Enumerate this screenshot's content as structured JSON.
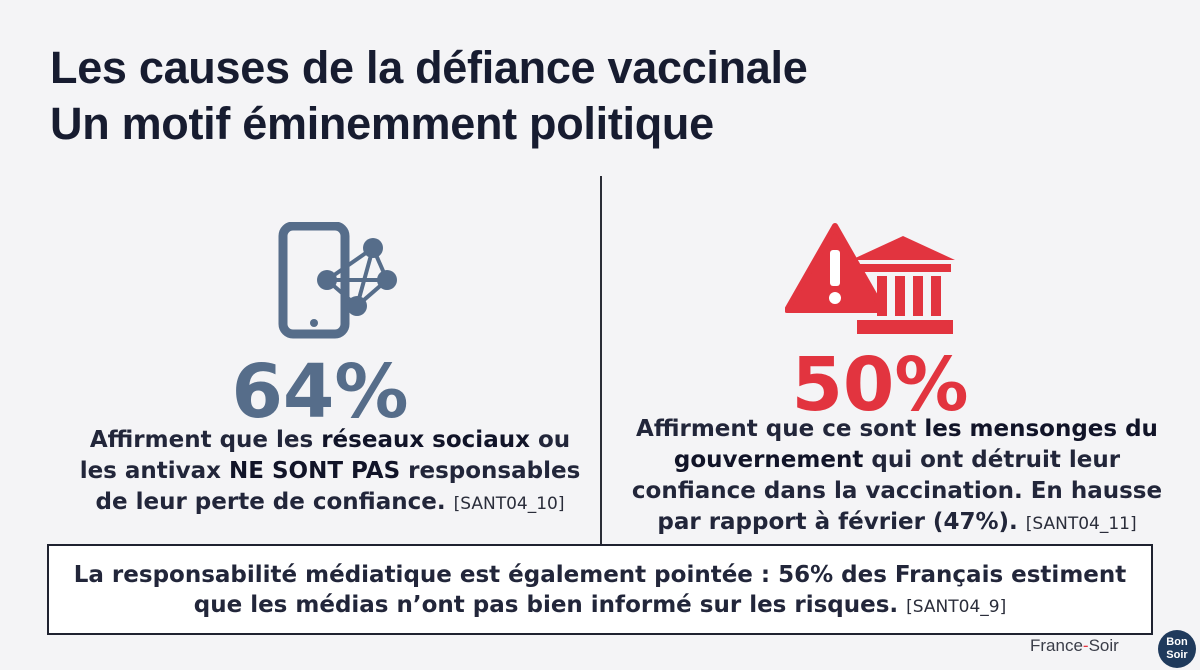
{
  "header": {
    "title_line1": "Les causes de la défiance vaccinale",
    "title_line2": "Un motif éminemment politique"
  },
  "left": {
    "icon": "smartphone-network-icon",
    "percent": "64%",
    "text_1": "Affirment que les ",
    "text_bold_1": "réseaux sociaux",
    "text_2": " ou les antivax ",
    "text_bold_2": "NE SONT PAS",
    "text_3": " responsables de leur perte de confiance. ",
    "ref": "[SANT04_10]"
  },
  "right": {
    "icon": "warning-government-icon",
    "percent": "50%",
    "text_1": "Affirment que ce sont ",
    "text_bold_1": "les mensonges du gouvernement",
    "text_2": " qui ont détruit leur confiance dans la vaccination. En hausse par rapport à février (47%). ",
    "ref": "[SANT04_11]"
  },
  "callout": {
    "text": "La responsabilité médiatique est également pointée : 56% des Français estiment que les médias n’ont pas bien informé sur les risques. ",
    "ref": "[SANT04_9]"
  },
  "footer": {
    "brand_part1": "France",
    "brand_dash": "-",
    "brand_part2": "Soir",
    "badge_line1": "Bon",
    "badge_line2": "Soir"
  },
  "colors": {
    "accent_blue": "#566d8a",
    "accent_red": "#e2343f",
    "text_dark": "#171c30"
  }
}
